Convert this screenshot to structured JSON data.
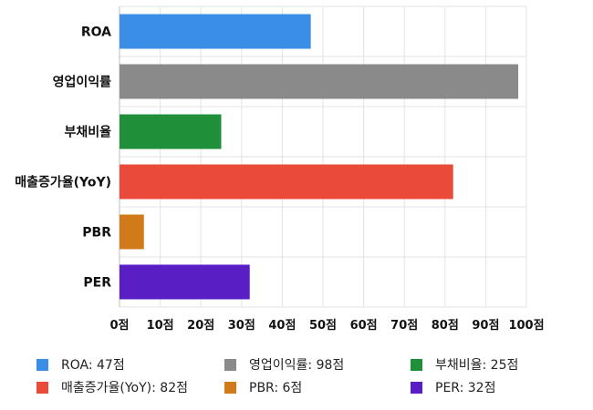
{
  "chart_data": {
    "type": "bar",
    "orientation": "horizontal",
    "categories": [
      "ROA",
      "영업이익률",
      "부채비율",
      "매출증가율(YoY)",
      "PBR",
      "PER"
    ],
    "values": [
      47,
      98,
      25,
      82,
      6,
      32
    ],
    "colors": [
      "#3a8ee6",
      "#8a8a8a",
      "#1f8f3a",
      "#ea4a3a",
      "#d07a1a",
      "#5a1fc4"
    ],
    "xlim": [
      0,
      100
    ],
    "xticks": [
      0,
      10,
      20,
      30,
      40,
      50,
      60,
      70,
      80,
      90,
      100
    ],
    "tick_suffix": "점",
    "grid": true,
    "legend_position": "bottom",
    "legend": [
      "ROA: 47점",
      "영업이익률: 98점",
      "부채비율: 25점",
      "매출증가율(YoY): 82점",
      "PBR: 6점",
      "PER: 32점"
    ]
  }
}
